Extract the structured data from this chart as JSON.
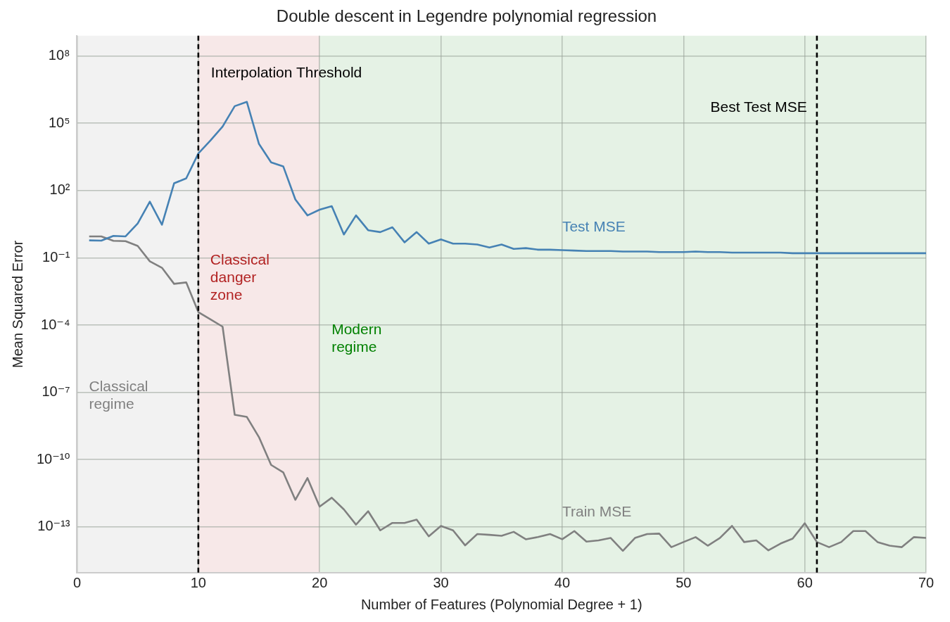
{
  "chart_data": {
    "type": "line",
    "title": "Double descent in Legendre polynomial regression",
    "xlabel": "Number of Features (Polynomial Degree + 1)",
    "ylabel": "Mean Squared Error",
    "x": [
      1,
      2,
      3,
      4,
      5,
      6,
      7,
      8,
      9,
      10,
      11,
      12,
      13,
      14,
      15,
      16,
      17,
      18,
      19,
      20,
      21,
      22,
      23,
      24,
      25,
      26,
      27,
      28,
      29,
      30,
      31,
      32,
      33,
      34,
      35,
      36,
      37,
      38,
      39,
      40,
      41,
      42,
      43,
      44,
      45,
      46,
      47,
      48,
      49,
      50,
      51,
      52,
      53,
      54,
      55,
      56,
      57,
      58,
      59,
      60,
      61,
      62,
      63,
      64,
      65,
      66,
      67,
      68,
      69,
      70
    ],
    "series": [
      {
        "name": "Test MSE",
        "color": "#4682b4",
        "values": [
          0.6,
          0.58,
          0.95,
          0.9,
          3.4,
          32,
          3,
          210,
          350,
          4500,
          17000,
          71000,
          580000,
          900000,
          12000,
          1800,
          1200,
          40,
          7.8,
          14,
          20,
          1.1,
          7.8,
          1.7,
          1.4,
          2.3,
          0.49,
          1.4,
          0.43,
          0.66,
          0.43,
          0.43,
          0.39,
          0.29,
          0.39,
          0.25,
          0.27,
          0.23,
          0.23,
          0.22,
          0.21,
          0.2,
          0.2,
          0.2,
          0.19,
          0.19,
          0.19,
          0.18,
          0.18,
          0.18,
          0.19,
          0.18,
          0.18,
          0.17,
          0.17,
          0.17,
          0.17,
          0.17,
          0.16,
          0.16,
          0.16,
          0.16,
          0.16,
          0.16,
          0.16,
          0.16,
          0.16,
          0.16,
          0.16,
          0.16
        ]
      },
      {
        "name": "Train MSE",
        "color": "#808080",
        "values": [
          0.9,
          0.9,
          0.57,
          0.55,
          0.34,
          0.07,
          0.036,
          0.0069,
          0.008,
          0.00038,
          0.00018,
          8.5e-05,
          1e-08,
          8e-09,
          1e-09,
          5.8e-11,
          2.7e-11,
          1.6e-12,
          1.5e-11,
          8e-13,
          2e-12,
          6e-13,
          1.26e-13,
          5e-13,
          7e-14,
          1.5e-13,
          1.5e-13,
          2.1e-13,
          3.8e-14,
          1.1e-13,
          7e-14,
          1.5e-14,
          4.8e-14,
          4.4e-14,
          4e-14,
          6e-14,
          2.8e-14,
          3.5e-14,
          4.8e-14,
          2.8e-14,
          6.5e-14,
          2.2e-14,
          2.5e-14,
          3.2e-14,
          8.5e-15,
          3.2e-14,
          4.8e-14,
          5e-14,
          1.25e-14,
          2.1e-14,
          3.5e-14,
          1.45e-14,
          3.2e-14,
          1.1e-13,
          2.1e-14,
          2.5e-14,
          9e-15,
          1.8e-14,
          3e-14,
          1.45e-13,
          2.1e-14,
          1.25e-14,
          2.1e-14,
          6.5e-14,
          6.5e-14,
          2.1e-14,
          1.45e-14,
          1.25e-14,
          3.5e-14,
          3.2e-14
        ]
      }
    ],
    "xlim": [
      0,
      70
    ],
    "xticks": [
      0,
      10,
      20,
      30,
      40,
      50,
      60,
      70
    ],
    "ylim": [
      9e-16,
      800000000.0
    ],
    "log": "y",
    "yticks": [
      {
        "value": 100000000.0,
        "label": "10⁸"
      },
      {
        "value": 100000.0,
        "label": "10⁵"
      },
      {
        "value": 100,
        "label": "10²"
      },
      {
        "value": 0.1,
        "label": "10⁻¹"
      },
      {
        "value": 0.0001,
        "label": "10⁻⁴"
      },
      {
        "value": 1e-07,
        "label": "10⁻⁷"
      },
      {
        "value": 1e-10,
        "label": "10⁻¹⁰"
      },
      {
        "value": 1e-13,
        "label": "10⁻¹³"
      }
    ],
    "bands": [
      {
        "axis": "x",
        "from": 0,
        "to": 10,
        "label": "Classical regime",
        "color": "#808080"
      },
      {
        "axis": "x",
        "from": 10,
        "to": 20,
        "label": "Classical danger zone",
        "color": "#b22222"
      },
      {
        "axis": "x",
        "from": 20,
        "to": 70,
        "label": "Modern regime",
        "color": "#008000"
      }
    ],
    "ref_lines": [
      {
        "axis": "x",
        "value": 10,
        "label": "Interpolation Threshold",
        "color": "#000000",
        "line_style": "dashed"
      },
      {
        "axis": "x",
        "value": 61,
        "label": "Best Test MSE",
        "color": "#000000",
        "line_style": "dashed"
      }
    ],
    "grid": true,
    "legend": false,
    "marker": "none",
    "line_style": "solid"
  }
}
